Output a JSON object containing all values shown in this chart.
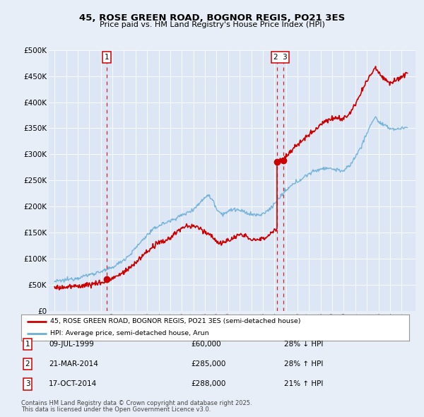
{
  "title": "45, ROSE GREEN ROAD, BOGNOR REGIS, PO21 3ES",
  "subtitle": "Price paid vs. HM Land Registry's House Price Index (HPI)",
  "legend_line1": "45, ROSE GREEN ROAD, BOGNOR REGIS, PO21 3ES (semi-detached house)",
  "legend_line2": "HPI: Average price, semi-detached house, Arun",
  "footer1": "Contains HM Land Registry data © Crown copyright and database right 2025.",
  "footer2": "This data is licensed under the Open Government Licence v3.0.",
  "transactions": [
    {
      "num": 1,
      "date": "09-JUL-1999",
      "price": 60000,
      "price_str": "£60,000",
      "pct": "28% ↓ HPI",
      "year": 1999.52
    },
    {
      "num": 2,
      "date": "21-MAR-2014",
      "price": 285000,
      "price_str": "£285,000",
      "pct": "28% ↑ HPI",
      "year": 2014.22
    },
    {
      "num": 3,
      "date": "17-OCT-2014",
      "price": 288000,
      "price_str": "£288,000",
      "pct": "21% ↑ HPI",
      "year": 2014.8
    }
  ],
  "background_color": "#e8eef7",
  "plot_bg_color": "#dce6f5",
  "red_color": "#cc0000",
  "blue_color": "#6baed6",
  "ylim": [
    0,
    500000
  ],
  "yticks": [
    0,
    50000,
    100000,
    150000,
    200000,
    250000,
    300000,
    350000,
    400000,
    450000,
    500000
  ],
  "ytick_labels": [
    "£0",
    "£50K",
    "£100K",
    "£150K",
    "£200K",
    "£250K",
    "£300K",
    "£350K",
    "£400K",
    "£450K",
    "£500K"
  ],
  "xmin": 1994.5,
  "xmax": 2026.2,
  "hpi_anchors": [
    [
      1995.0,
      56000
    ],
    [
      1995.5,
      57000
    ],
    [
      1996.0,
      59000
    ],
    [
      1996.5,
      61000
    ],
    [
      1997.0,
      63000
    ],
    [
      1997.5,
      66000
    ],
    [
      1998.0,
      69000
    ],
    [
      1998.5,
      72000
    ],
    [
      1999.0,
      75000
    ],
    [
      1999.5,
      78000
    ],
    [
      2000.0,
      83000
    ],
    [
      2000.5,
      90000
    ],
    [
      2001.0,
      98000
    ],
    [
      2001.5,
      107000
    ],
    [
      2002.0,
      120000
    ],
    [
      2002.5,
      133000
    ],
    [
      2003.0,
      145000
    ],
    [
      2003.5,
      155000
    ],
    [
      2004.0,
      163000
    ],
    [
      2004.5,
      168000
    ],
    [
      2005.0,
      172000
    ],
    [
      2005.5,
      178000
    ],
    [
      2006.0,
      183000
    ],
    [
      2006.5,
      188000
    ],
    [
      2007.0,
      195000
    ],
    [
      2007.5,
      205000
    ],
    [
      2008.0,
      218000
    ],
    [
      2008.25,
      222000
    ],
    [
      2008.75,
      210000
    ],
    [
      2009.0,
      195000
    ],
    [
      2009.5,
      185000
    ],
    [
      2010.0,
      190000
    ],
    [
      2010.5,
      195000
    ],
    [
      2011.0,
      192000
    ],
    [
      2011.5,
      188000
    ],
    [
      2012.0,
      185000
    ],
    [
      2012.5,
      183000
    ],
    [
      2013.0,
      185000
    ],
    [
      2013.5,
      193000
    ],
    [
      2014.0,
      205000
    ],
    [
      2014.5,
      218000
    ],
    [
      2015.0,
      230000
    ],
    [
      2015.5,
      240000
    ],
    [
      2016.0,
      248000
    ],
    [
      2016.5,
      255000
    ],
    [
      2017.0,
      263000
    ],
    [
      2017.5,
      268000
    ],
    [
      2018.0,
      272000
    ],
    [
      2018.5,
      274000
    ],
    [
      2019.0,
      272000
    ],
    [
      2019.5,
      270000
    ],
    [
      2020.0,
      268000
    ],
    [
      2020.5,
      278000
    ],
    [
      2021.0,
      295000
    ],
    [
      2021.5,
      315000
    ],
    [
      2022.0,
      340000
    ],
    [
      2022.5,
      365000
    ],
    [
      2022.75,
      372000
    ],
    [
      2023.0,
      362000
    ],
    [
      2023.5,
      355000
    ],
    [
      2024.0,
      350000
    ],
    [
      2024.5,
      348000
    ],
    [
      2025.0,
      350000
    ],
    [
      2025.5,
      352000
    ]
  ],
  "prop_anchors": [
    [
      1995.0,
      44000
    ],
    [
      1995.5,
      44500
    ],
    [
      1996.0,
      45000
    ],
    [
      1996.5,
      46000
    ],
    [
      1997.0,
      47000
    ],
    [
      1997.5,
      48500
    ],
    [
      1998.0,
      50000
    ],
    [
      1998.5,
      52000
    ],
    [
      1999.0,
      54000
    ],
    [
      1999.4,
      55000
    ],
    [
      1999.52,
      60000
    ],
    [
      1999.7,
      60500
    ],
    [
      2000.0,
      62000
    ],
    [
      2000.5,
      67000
    ],
    [
      2001.0,
      74000
    ],
    [
      2001.5,
      82000
    ],
    [
      2002.0,
      92000
    ],
    [
      2002.5,
      103000
    ],
    [
      2003.0,
      113000
    ],
    [
      2003.5,
      122000
    ],
    [
      2004.0,
      130000
    ],
    [
      2004.5,
      133000
    ],
    [
      2005.0,
      140000
    ],
    [
      2005.5,
      150000
    ],
    [
      2006.0,
      158000
    ],
    [
      2006.5,
      162000
    ],
    [
      2007.0,
      162000
    ],
    [
      2007.5,
      158000
    ],
    [
      2008.0,
      152000
    ],
    [
      2008.5,
      145000
    ],
    [
      2009.0,
      133000
    ],
    [
      2009.5,
      128000
    ],
    [
      2010.0,
      135000
    ],
    [
      2010.5,
      140000
    ],
    [
      2011.0,
      145000
    ],
    [
      2011.5,
      143000
    ],
    [
      2012.0,
      138000
    ],
    [
      2012.5,
      135000
    ],
    [
      2013.0,
      138000
    ],
    [
      2013.5,
      145000
    ],
    [
      2014.0,
      155000
    ],
    [
      2014.15,
      158000
    ],
    [
      2014.21,
      158500
    ],
    [
      2014.22,
      285000
    ],
    [
      2014.5,
      287000
    ],
    [
      2014.79,
      288000
    ],
    [
      2014.8,
      288000
    ],
    [
      2015.0,
      295000
    ],
    [
      2015.5,
      308000
    ],
    [
      2016.0,
      318000
    ],
    [
      2016.5,
      328000
    ],
    [
      2017.0,
      338000
    ],
    [
      2017.5,
      348000
    ],
    [
      2018.0,
      358000
    ],
    [
      2018.5,
      365000
    ],
    [
      2019.0,
      368000
    ],
    [
      2019.5,
      370000
    ],
    [
      2020.0,
      368000
    ],
    [
      2020.5,
      378000
    ],
    [
      2021.0,
      395000
    ],
    [
      2021.5,
      418000
    ],
    [
      2022.0,
      440000
    ],
    [
      2022.5,
      460000
    ],
    [
      2022.75,
      468000
    ],
    [
      2023.0,
      458000
    ],
    [
      2023.25,
      452000
    ],
    [
      2023.5,
      445000
    ],
    [
      2024.0,
      438000
    ],
    [
      2024.5,
      442000
    ],
    [
      2025.0,
      450000
    ],
    [
      2025.5,
      455000
    ]
  ]
}
